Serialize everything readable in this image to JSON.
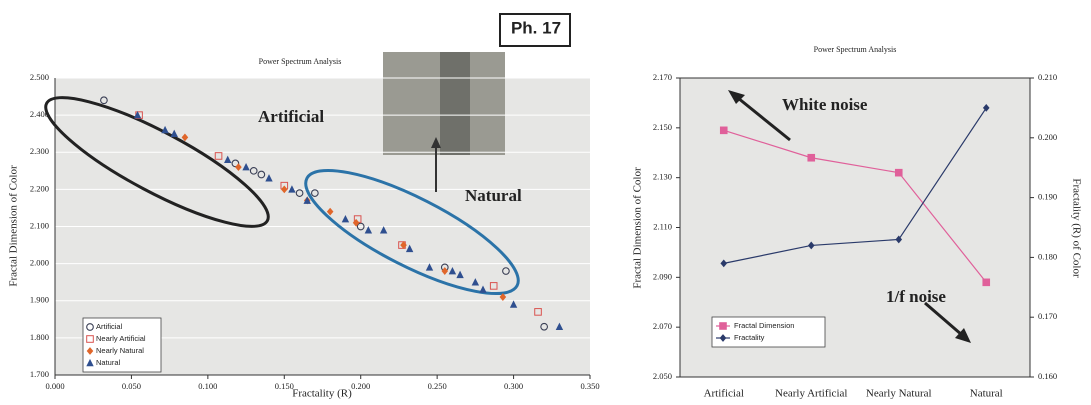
{
  "chart_data": [
    {
      "type": "scatter",
      "title": "Power Spectrum Analysis",
      "x_label": "Fractality (R)",
      "y_label": "Fractal Dimension of Color",
      "xlim": [
        0,
        0.35
      ],
      "xticks": [
        {
          "value": 0,
          "label": "0.000"
        },
        {
          "value": 0.05,
          "label": "0.050"
        },
        {
          "value": 0.1,
          "label": "0.100"
        },
        {
          "value": 0.15,
          "label": "0.150"
        },
        {
          "value": 0.2,
          "label": "0.200"
        },
        {
          "value": 0.25,
          "label": "0.250"
        },
        {
          "value": 0.3,
          "label": "0.300"
        },
        {
          "value": 0.35,
          "label": "0.350"
        }
      ],
      "ylim": [
        1.7,
        2.5
      ],
      "yticks": [
        {
          "value": 1.7,
          "label": "1.700"
        },
        {
          "value": 1.8,
          "label": "1.800"
        },
        {
          "value": 1.9,
          "label": "1.900"
        },
        {
          "value": 2,
          "label": "2.000"
        },
        {
          "value": 2.1,
          "label": "2.100"
        },
        {
          "value": 2.2,
          "label": "2.200"
        },
        {
          "value": 2.3,
          "label": "2.300"
        },
        {
          "value": 2.4,
          "label": "2.400"
        },
        {
          "value": 2.5,
          "label": "2.500"
        }
      ],
      "grid": true,
      "annotations": [
        "Artificial",
        "Natural",
        "Ph. 17"
      ],
      "series": [
        {
          "name": "Artificial",
          "color": "#3a3f55",
          "marker": "circle-open",
          "x": [
            0.032,
            0.118,
            0.13,
            0.135,
            0.16,
            0.17,
            0.2,
            0.255,
            0.295,
            0.32
          ],
          "values": [
            2.44,
            2.27,
            2.25,
            2.24,
            2.19,
            2.19,
            2.1,
            1.99,
            1.98,
            1.83
          ]
        },
        {
          "name": "Nearly Artificial",
          "color": "#d9534f",
          "marker": "square-open",
          "x": [
            0.055,
            0.107,
            0.15,
            0.198,
            0.227,
            0.287,
            0.316
          ],
          "values": [
            2.4,
            2.29,
            2.21,
            2.12,
            2.05,
            1.94,
            1.87
          ]
        },
        {
          "name": "Nearly Natural",
          "color": "#e0662a",
          "marker": "diamond",
          "x": [
            0.085,
            0.12,
            0.15,
            0.165,
            0.18,
            0.197,
            0.228,
            0.255,
            0.293
          ],
          "values": [
            2.34,
            2.26,
            2.2,
            2.17,
            2.14,
            2.11,
            2.05,
            1.98,
            1.91
          ]
        },
        {
          "name": "Natural",
          "color": "#2f4f8f",
          "marker": "triangle",
          "x": [
            0.054,
            0.072,
            0.078,
            0.113,
            0.125,
            0.14,
            0.155,
            0.165,
            0.19,
            0.205,
            0.215,
            0.232,
            0.245,
            0.26,
            0.265,
            0.275,
            0.28,
            0.3,
            0.33
          ],
          "values": [
            2.4,
            2.36,
            2.35,
            2.28,
            2.26,
            2.23,
            2.2,
            2.17,
            2.12,
            2.09,
            2.09,
            2.04,
            1.99,
            1.98,
            1.97,
            1.95,
            1.93,
            1.89,
            1.83
          ]
        }
      ]
    },
    {
      "type": "line",
      "title": "Power Spectrum Analysis",
      "y_label": "Fractal Dimension of Color",
      "y2_label": "Fractality (R) of Color",
      "categories": [
        "Artificial",
        "Nearly Artificial",
        "Nearly Natural",
        "Natural"
      ],
      "ylim": [
        2.05,
        2.17
      ],
      "yticks": [
        {
          "value": 2.05,
          "label": "2.050"
        },
        {
          "value": 2.07,
          "label": "2.070"
        },
        {
          "value": 2.09,
          "label": "2.090"
        },
        {
          "value": 2.11,
          "label": "2.110"
        },
        {
          "value": 2.13,
          "label": "2.130"
        },
        {
          "value": 2.15,
          "label": "2.150"
        },
        {
          "value": 2.17,
          "label": "2.170"
        }
      ],
      "y2lim": [
        0.16,
        0.21
      ],
      "y2ticks": [
        {
          "value": 0.16,
          "label": "0.160"
        },
        {
          "value": 0.17,
          "label": "0.170"
        },
        {
          "value": 0.18,
          "label": "0.180"
        },
        {
          "value": 0.19,
          "label": "0.190"
        },
        {
          "value": 0.2,
          "label": "0.200"
        },
        {
          "value": 0.21,
          "label": "0.210"
        }
      ],
      "annotations": [
        "White noise",
        "1/f noise"
      ],
      "series": [
        {
          "name": "Fractal Dimension",
          "color": "#e0609a",
          "marker": "square",
          "values": [
            2.149,
            2.138,
            2.132,
            2.088
          ]
        },
        {
          "name": "Fractality",
          "color": "#2a3a6a",
          "marker": "diamond",
          "axis": "y2",
          "values": [
            0.179,
            0.182,
            0.183,
            0.205
          ]
        }
      ]
    }
  ]
}
